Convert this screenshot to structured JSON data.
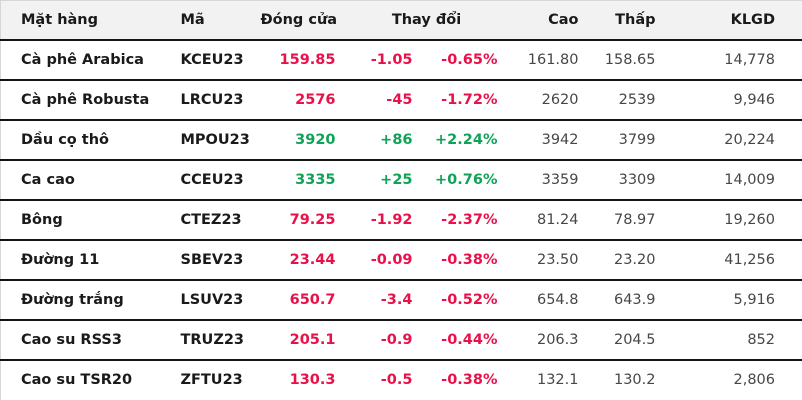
{
  "colors": {
    "up": "#10a257",
    "down": "#e8114a",
    "header_bg": "#f2f2f2",
    "row_rule": "#141414",
    "frame": "#d6d6d6"
  },
  "headers": {
    "item": "Mặt hàng",
    "code": "Mã",
    "close": "Đóng cửa",
    "change": "Thay đổi",
    "high": "Cao",
    "low": "Thấp",
    "volume": "KLGD"
  },
  "chart_data": {
    "type": "table",
    "title": "",
    "columns": [
      "Mặt hàng",
      "Mã",
      "Đóng cửa",
      "Thay đổi",
      "Thay đổi %",
      "Cao",
      "Thấp",
      "KLGD"
    ],
    "rows": [
      {
        "item": "Cà phê Arabica",
        "code": "KCEU23",
        "close": "159.85",
        "change": "-1.05",
        "change_pct": "-0.65%",
        "high": "161.80",
        "low": "158.65",
        "volume": "14,778",
        "direction": "down"
      },
      {
        "item": "Cà phê Robusta",
        "code": "LRCU23",
        "close": "2576",
        "change": "-45",
        "change_pct": "-1.72%",
        "high": "2620",
        "low": "2539",
        "volume": "9,946",
        "direction": "down"
      },
      {
        "item": "Dầu cọ thô",
        "code": "MPOU23",
        "close": "3920",
        "change": "+86",
        "change_pct": "+2.24%",
        "high": "3942",
        "low": "3799",
        "volume": "20,224",
        "direction": "up"
      },
      {
        "item": "Ca cao",
        "code": "CCEU23",
        "close": "3335",
        "change": "+25",
        "change_pct": "+0.76%",
        "high": "3359",
        "low": "3309",
        "volume": "14,009",
        "direction": "up"
      },
      {
        "item": "Bông",
        "code": "CTEZ23",
        "close": "79.25",
        "change": "-1.92",
        "change_pct": "-2.37%",
        "high": "81.24",
        "low": "78.97",
        "volume": "19,260",
        "direction": "down"
      },
      {
        "item": "Đường 11",
        "code": "SBEV23",
        "close": "23.44",
        "change": "-0.09",
        "change_pct": "-0.38%",
        "high": "23.50",
        "low": "23.20",
        "volume": "41,256",
        "direction": "down"
      },
      {
        "item": "Đường trắng",
        "code": "LSUV23",
        "close": "650.7",
        "change": "-3.4",
        "change_pct": "-0.52%",
        "high": "654.8",
        "low": "643.9",
        "volume": "5,916",
        "direction": "down"
      },
      {
        "item": "Cao su RSS3",
        "code": "TRUZ23",
        "close": "205.1",
        "change": "-0.9",
        "change_pct": "-0.44%",
        "high": "206.3",
        "low": "204.5",
        "volume": "852",
        "direction": "down"
      },
      {
        "item": "Cao su TSR20",
        "code": "ZFTU23",
        "close": "130.3",
        "change": "-0.5",
        "change_pct": "-0.38%",
        "high": "132.1",
        "low": "130.2",
        "volume": "2,806",
        "direction": "down"
      }
    ]
  }
}
